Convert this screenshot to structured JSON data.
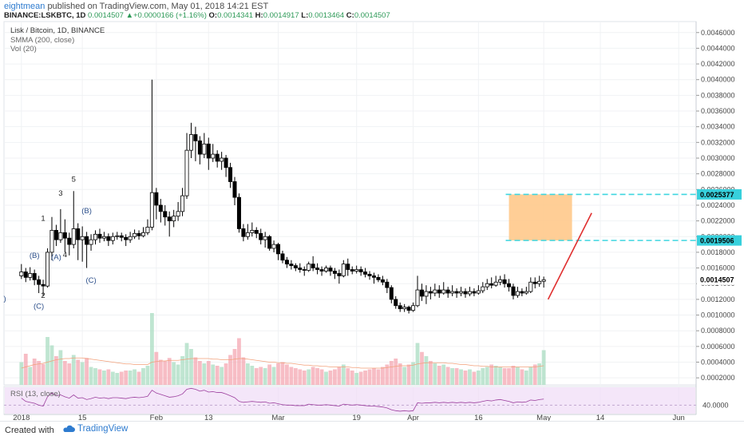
{
  "header": {
    "user": "eightmean",
    "published": "published on TradingView.com, May 01, 2018 14:21 EST",
    "symbol": "BINANCE:LSKBTC, 1D",
    "last": "0.0014507",
    "arrow": "▲",
    "change": "+0.0000166 (+1.16%)",
    "o_label": "O:",
    "o": "0.0014341",
    "h_label": "H:",
    "h": "0.0014917",
    "l_label": "L:",
    "l": "0.0013464",
    "c_label": "C:",
    "c": "0.0014507"
  },
  "legend": {
    "title": "Lisk / Bitcoin, 1D, BINANCE",
    "smma": "SMMA (200, close)",
    "vol": "Vol (20)"
  },
  "rsi_label": "RSI (13, close)",
  "footer": {
    "created": "Created with",
    "brand": "TradingView"
  },
  "colors": {
    "up": "#ffffff",
    "down": "#000000",
    "wick": "#000000",
    "vol_up": "#a9dcc1",
    "vol_down": "#f4a7b1",
    "zone_fill": "#ffc98b",
    "zone_line": "#3ed6e0",
    "arrow": "#e03030",
    "rsi_fill": "#efdcf7",
    "rsi_line": "#9c3f9e",
    "price_tag": "#37d0dc"
  },
  "chart_data": {
    "type": "candlestick",
    "y_ticks": [
      "0.0046000",
      "0.0044000",
      "0.0042000",
      "0.0040000",
      "0.0038000",
      "0.0036000",
      "0.0034000",
      "0.0032000",
      "0.0030000",
      "0.0028000",
      "0.0026000",
      "0.0024000",
      "0.0022000",
      "0.0020000",
      "0.0018000",
      "0.0016000",
      "0.0014000",
      "0.0012000",
      "0.0010000",
      "0.0008000",
      "0.0006000",
      "0.0004000",
      "0.0002000"
    ],
    "y_range": [
      0.00011,
      0.00474
    ],
    "x_labels": [
      "2018",
      "15",
      "Feb",
      "13",
      "Mar",
      "19",
      "Apr",
      "16",
      "May",
      "14",
      "Jun"
    ],
    "x_label_days": [
      0,
      14,
      31,
      43,
      59,
      77,
      90,
      105,
      120,
      133,
      151
    ],
    "x_range_days": [
      -4,
      155
    ],
    "zone": {
      "top": 0.0025377,
      "bottom": 0.0019506
    },
    "zone_labels": [
      "0.0025377",
      "0.0019506"
    ],
    "last_price_label": "0.0014507",
    "rsi_tick": "40.0000",
    "rsi_line_value": 40,
    "rsi_range": [
      20,
      80
    ],
    "forecast_arrow": {
      "from": [
        121,
        0.0012
      ],
      "to": [
        131,
        0.0023
      ]
    },
    "wave_labels": [
      {
        "t": "(B)",
        "day": 3,
        "price": 0.00173
      },
      {
        "t": "(C)",
        "day": 4,
        "price": 0.00108
      },
      {
        "t": "2",
        "day": 5,
        "price": 0.00122
      },
      {
        "t": "1",
        "day": 5,
        "price": 0.0022
      },
      {
        "t": "3",
        "day": 9,
        "price": 0.00252
      },
      {
        "t": "(A)",
        "day": 8,
        "price": 0.00171
      },
      {
        "t": "4",
        "day": 10,
        "price": 0.00174
      },
      {
        "t": "5",
        "day": 12,
        "price": 0.0027
      },
      {
        "t": "(B)",
        "day": 15,
        "price": 0.0023
      },
      {
        "t": "(C)",
        "day": 16,
        "price": 0.00141
      },
      {
        "t": ")",
        "day": -3.8,
        "price": 0.00118
      }
    ],
    "candles": [
      [
        0.0015,
        0.00155,
        0.00165,
        0.00146,
        38
      ],
      [
        0.00155,
        0.00148,
        0.0016,
        0.00142,
        52
      ],
      [
        0.00148,
        0.00153,
        0.00161,
        0.00144,
        30
      ],
      [
        0.00153,
        0.00145,
        0.00158,
        0.00138,
        44
      ],
      [
        0.00145,
        0.00139,
        0.0015,
        0.00128,
        40
      ],
      [
        0.00139,
        0.00137,
        0.00145,
        0.00124,
        35
      ],
      [
        0.00137,
        0.0018,
        0.00185,
        0.00135,
        80
      ],
      [
        0.0018,
        0.00208,
        0.00225,
        0.0017,
        66
      ],
      [
        0.00208,
        0.00196,
        0.00215,
        0.00188,
        48
      ],
      [
        0.00196,
        0.00205,
        0.00235,
        0.00192,
        58
      ],
      [
        0.00205,
        0.00198,
        0.00222,
        0.0018,
        40
      ],
      [
        0.00198,
        0.0019,
        0.00205,
        0.00176,
        36
      ],
      [
        0.0019,
        0.0021,
        0.00258,
        0.00185,
        50
      ],
      [
        0.0021,
        0.00196,
        0.00217,
        0.0017,
        42
      ],
      [
        0.00196,
        0.002,
        0.00213,
        0.00168,
        38
      ],
      [
        0.002,
        0.0019,
        0.00206,
        0.0016,
        45
      ],
      [
        0.0019,
        0.00196,
        0.00203,
        0.00182,
        30
      ],
      [
        0.00196,
        0.00203,
        0.00208,
        0.0019,
        28
      ],
      [
        0.00203,
        0.00198,
        0.0021,
        0.00192,
        26
      ],
      [
        0.00198,
        0.002,
        0.00206,
        0.00194,
        24
      ],
      [
        0.002,
        0.00195,
        0.00204,
        0.00188,
        26
      ],
      [
        0.00195,
        0.002,
        0.00205,
        0.0019,
        22
      ],
      [
        0.002,
        0.00201,
        0.00206,
        0.00196,
        20
      ],
      [
        0.00201,
        0.00199,
        0.00205,
        0.00194,
        22
      ],
      [
        0.00199,
        0.00196,
        0.00203,
        0.00188,
        24
      ],
      [
        0.00196,
        0.002,
        0.00206,
        0.00192,
        24
      ],
      [
        0.002,
        0.00204,
        0.00209,
        0.00197,
        26
      ],
      [
        0.00204,
        0.00201,
        0.00208,
        0.00196,
        22
      ],
      [
        0.00201,
        0.00205,
        0.00212,
        0.00199,
        28
      ],
      [
        0.00205,
        0.00212,
        0.00222,
        0.00202,
        32
      ],
      [
        0.00212,
        0.00256,
        0.004,
        0.00208,
        120
      ],
      [
        0.00256,
        0.0024,
        0.00262,
        0.00222,
        55
      ],
      [
        0.0024,
        0.00232,
        0.00248,
        0.00218,
        42
      ],
      [
        0.00232,
        0.00225,
        0.0024,
        0.00214,
        40
      ],
      [
        0.00225,
        0.0022,
        0.00232,
        0.002,
        45
      ],
      [
        0.0022,
        0.00226,
        0.00234,
        0.00212,
        38
      ],
      [
        0.00226,
        0.00232,
        0.00244,
        0.0022,
        34
      ],
      [
        0.00232,
        0.00252,
        0.00262,
        0.00226,
        48
      ],
      [
        0.00252,
        0.0031,
        0.00332,
        0.00248,
        70
      ],
      [
        0.0031,
        0.0033,
        0.00345,
        0.003,
        60
      ],
      [
        0.0033,
        0.00322,
        0.0034,
        0.00296,
        46
      ],
      [
        0.00322,
        0.00305,
        0.00328,
        0.00292,
        40
      ],
      [
        0.00305,
        0.00318,
        0.00332,
        0.003,
        36
      ],
      [
        0.00318,
        0.003,
        0.00326,
        0.00285,
        40
      ],
      [
        0.003,
        0.00305,
        0.00318,
        0.00295,
        34
      ],
      [
        0.00305,
        0.00296,
        0.0031,
        0.00288,
        32
      ],
      [
        0.00296,
        0.003,
        0.00308,
        0.00285,
        30
      ],
      [
        0.003,
        0.00288,
        0.00304,
        0.00276,
        36
      ],
      [
        0.00288,
        0.0027,
        0.00294,
        0.00262,
        50
      ],
      [
        0.0027,
        0.0025,
        0.00276,
        0.0024,
        60
      ],
      [
        0.0025,
        0.0021,
        0.00255,
        0.00205,
        78
      ],
      [
        0.0021,
        0.002,
        0.00216,
        0.00194,
        46
      ],
      [
        0.002,
        0.00205,
        0.00216,
        0.00196,
        36
      ],
      [
        0.00205,
        0.00208,
        0.00218,
        0.002,
        32
      ],
      [
        0.00208,
        0.00204,
        0.00212,
        0.00198,
        28
      ],
      [
        0.00204,
        0.00196,
        0.0021,
        0.0019,
        30
      ],
      [
        0.00196,
        0.002,
        0.00206,
        0.00186,
        28
      ],
      [
        0.002,
        0.00185,
        0.00202,
        0.00182,
        34
      ],
      [
        0.00185,
        0.0019,
        0.00195,
        0.0018,
        30
      ],
      [
        0.0019,
        0.00178,
        0.00192,
        0.0017,
        36
      ],
      [
        0.00178,
        0.0017,
        0.00182,
        0.00166,
        38
      ],
      [
        0.0017,
        0.00165,
        0.00174,
        0.0016,
        34
      ],
      [
        0.00165,
        0.00163,
        0.0017,
        0.00158,
        30
      ],
      [
        0.00163,
        0.0016,
        0.00166,
        0.00156,
        28
      ],
      [
        0.0016,
        0.00158,
        0.00166,
        0.00154,
        26
      ],
      [
        0.00158,
        0.00157,
        0.00162,
        0.0015,
        24
      ],
      [
        0.00157,
        0.00165,
        0.00168,
        0.00155,
        26
      ],
      [
        0.00165,
        0.0016,
        0.00175,
        0.00156,
        30
      ],
      [
        0.0016,
        0.00158,
        0.00166,
        0.00152,
        28
      ],
      [
        0.00158,
        0.00156,
        0.00162,
        0.0015,
        26
      ],
      [
        0.00156,
        0.0016,
        0.00163,
        0.00154,
        22
      ],
      [
        0.0016,
        0.00156,
        0.00163,
        0.0015,
        24
      ],
      [
        0.00156,
        0.00153,
        0.0016,
        0.00146,
        26
      ],
      [
        0.00153,
        0.0015,
        0.00158,
        0.0014,
        30
      ],
      [
        0.0015,
        0.00165,
        0.0017,
        0.00148,
        34
      ],
      [
        0.00165,
        0.00158,
        0.00172,
        0.0015,
        28
      ],
      [
        0.00158,
        0.00156,
        0.00162,
        0.00152,
        24
      ],
      [
        0.00156,
        0.00158,
        0.00163,
        0.00153,
        20
      ],
      [
        0.00158,
        0.00155,
        0.00162,
        0.0015,
        22
      ],
      [
        0.00155,
        0.00152,
        0.0016,
        0.00148,
        24
      ],
      [
        0.00152,
        0.0015,
        0.00156,
        0.00145,
        26
      ],
      [
        0.0015,
        0.00148,
        0.00154,
        0.0014,
        28
      ],
      [
        0.00148,
        0.00145,
        0.00152,
        0.00142,
        26
      ],
      [
        0.00145,
        0.00142,
        0.0015,
        0.00138,
        30
      ],
      [
        0.00142,
        0.00135,
        0.00146,
        0.00128,
        34
      ],
      [
        0.00135,
        0.0012,
        0.00138,
        0.00115,
        40
      ],
      [
        0.0012,
        0.00112,
        0.00124,
        0.00108,
        44
      ],
      [
        0.00112,
        0.00108,
        0.00116,
        0.00104,
        36
      ],
      [
        0.00108,
        0.0011,
        0.00114,
        0.00104,
        30
      ],
      [
        0.0011,
        0.00106,
        0.00112,
        0.00102,
        34
      ],
      [
        0.00106,
        0.00112,
        0.00116,
        0.00104,
        38
      ],
      [
        0.00112,
        0.00132,
        0.0015,
        0.0011,
        70
      ],
      [
        0.00132,
        0.00124,
        0.0014,
        0.00118,
        55
      ],
      [
        0.00124,
        0.0013,
        0.00138,
        0.00114,
        48
      ],
      [
        0.0013,
        0.00128,
        0.00136,
        0.0012,
        40
      ],
      [
        0.00128,
        0.00132,
        0.0014,
        0.00124,
        36
      ],
      [
        0.00132,
        0.00128,
        0.00138,
        0.00122,
        32
      ],
      [
        0.00128,
        0.00132,
        0.00142,
        0.00126,
        34
      ],
      [
        0.00132,
        0.00128,
        0.00136,
        0.00122,
        30
      ],
      [
        0.00128,
        0.0013,
        0.00138,
        0.00124,
        28
      ],
      [
        0.0013,
        0.00128,
        0.00134,
        0.00122,
        28
      ],
      [
        0.00128,
        0.0013,
        0.00136,
        0.00124,
        26
      ],
      [
        0.0013,
        0.00127,
        0.00134,
        0.00122,
        24
      ],
      [
        0.00127,
        0.0013,
        0.00136,
        0.00124,
        26
      ],
      [
        0.0013,
        0.00128,
        0.00134,
        0.00124,
        22
      ],
      [
        0.00128,
        0.00131,
        0.00138,
        0.00126,
        24
      ],
      [
        0.00131,
        0.00136,
        0.00142,
        0.00128,
        28
      ],
      [
        0.00136,
        0.0014,
        0.00146,
        0.00132,
        30
      ],
      [
        0.0014,
        0.00138,
        0.00148,
        0.00134,
        34
      ],
      [
        0.00138,
        0.00142,
        0.0015,
        0.00136,
        32
      ],
      [
        0.00142,
        0.00145,
        0.0015,
        0.00138,
        30
      ],
      [
        0.00145,
        0.0014,
        0.00152,
        0.00135,
        28
      ],
      [
        0.0014,
        0.00136,
        0.00146,
        0.0013,
        28
      ],
      [
        0.00136,
        0.00125,
        0.0014,
        0.0012,
        32
      ],
      [
        0.00125,
        0.0013,
        0.00136,
        0.00122,
        30
      ],
      [
        0.0013,
        0.00128,
        0.00134,
        0.00124,
        26
      ],
      [
        0.00128,
        0.0013,
        0.00136,
        0.00126,
        24
      ],
      [
        0.0013,
        0.00142,
        0.00148,
        0.00128,
        30
      ],
      [
        0.00142,
        0.0014,
        0.00148,
        0.00134,
        34
      ],
      [
        0.0014,
        0.00143,
        0.0015,
        0.00136,
        36
      ],
      [
        0.00143,
        0.00145,
        0.00149,
        0.00135,
        58
      ]
    ],
    "rsi": [
      55,
      48,
      46,
      44,
      40,
      38,
      58,
      66,
      60,
      62,
      58,
      55,
      62,
      55,
      56,
      52,
      54,
      57,
      55,
      56,
      54,
      56,
      56,
      55,
      54,
      56,
      57,
      56,
      57,
      59,
      72,
      66,
      63,
      60,
      57,
      58,
      60,
      64,
      74,
      76,
      74,
      70,
      72,
      68,
      69,
      67,
      67,
      64,
      60,
      56,
      48,
      46,
      47,
      48,
      47,
      46,
      47,
      44,
      45,
      43,
      41,
      40,
      40,
      39,
      39,
      39,
      42,
      41,
      40,
      40,
      41,
      40,
      39,
      38,
      42,
      41,
      40,
      41,
      40,
      39,
      38,
      38,
      37,
      36,
      34,
      30,
      28,
      27,
      28,
      27,
      28,
      45,
      44,
      45,
      45,
      46,
      45,
      46,
      45,
      46,
      45,
      46,
      45,
      46,
      45,
      46,
      48,
      50,
      49,
      51,
      52,
      50,
      48,
      45,
      47,
      46,
      47,
      51,
      50,
      52,
      53
    ],
    "vol_ma": [
      28,
      30,
      32,
      34,
      35,
      36,
      38,
      40,
      42,
      43,
      44,
      44,
      45,
      45,
      45,
      44,
      43,
      42,
      41,
      40,
      39,
      38,
      37,
      36,
      35,
      35,
      34,
      34,
      34,
      34,
      38,
      39,
      40,
      40,
      41,
      41,
      41,
      42,
      43,
      44,
      44,
      44,
      44,
      44,
      43,
      43,
      42,
      42,
      42,
      43,
      44,
      44,
      43,
      42,
      41,
      40,
      39,
      38,
      38,
      37,
      37,
      36,
      36,
      35,
      34,
      33,
      33,
      32,
      32,
      31,
      31,
      30,
      30,
      30,
      30,
      30,
      29,
      29,
      28,
      28,
      28,
      28,
      28,
      28,
      29,
      30,
      31,
      32,
      32,
      32,
      33,
      35,
      36,
      37,
      37,
      37,
      37,
      37,
      36,
      36,
      35,
      34,
      34,
      33,
      32,
      32,
      31,
      31,
      30,
      30,
      30,
      30,
      30,
      30,
      30,
      30,
      30,
      30,
      30,
      31,
      32
    ]
  }
}
